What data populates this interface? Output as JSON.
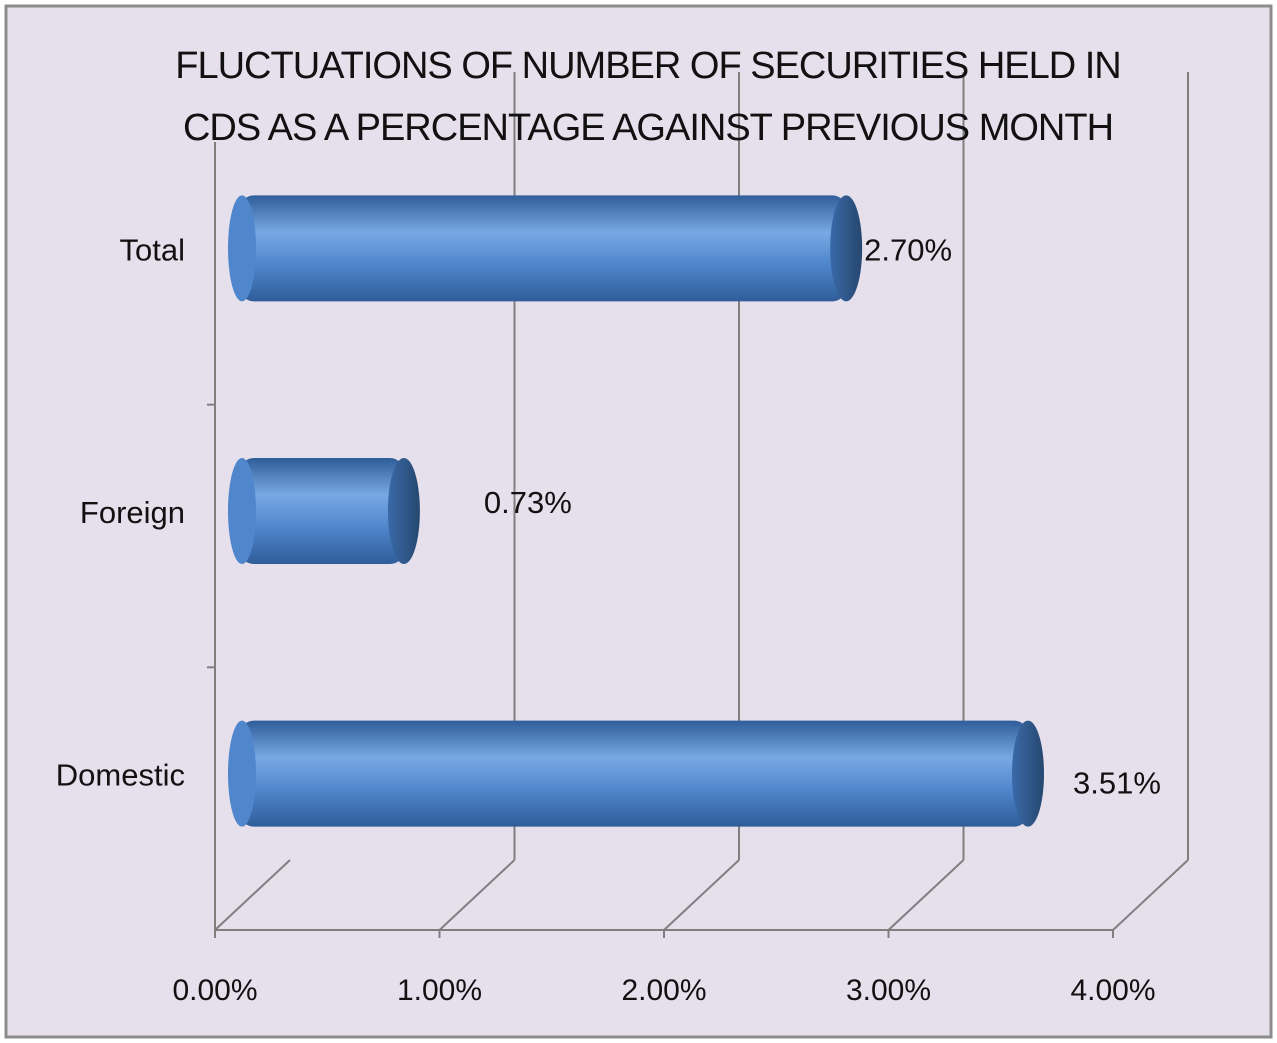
{
  "chart_data": {
    "type": "bar",
    "orientation": "horizontal",
    "style": "3d-cylinder",
    "title": "FLUCTUATIONS OF  NUMBER  OF SECURITIES HELD IN CDS  AS A PERCENTAGE AGAINST PREVIOUS MONTH",
    "title_lines": [
      "FLUCTUATIONS OF  NUMBER  OF SECURITIES HELD IN",
      "CDS  AS A PERCENTAGE AGAINST PREVIOUS MONTH"
    ],
    "categories": [
      "Total",
      "Foreign",
      "Domestic"
    ],
    "values": [
      2.7,
      0.73,
      3.51
    ],
    "data_labels": [
      "2.70%",
      "0.73%",
      "3.51%"
    ],
    "unit": "%",
    "xlim": [
      0,
      4
    ],
    "x_ticks": [
      0,
      1,
      2,
      3,
      4
    ],
    "x_tick_labels": [
      "0.00%",
      "1.00%",
      "2.00%",
      "3.00%",
      "4.00%"
    ],
    "xlabel": "",
    "ylabel": "",
    "grid": true,
    "legend": "none",
    "colors": {
      "background": "#e6dfec",
      "bar_face": "#4f86cc",
      "bar_highlight": "#79a9e4",
      "bar_shadow": "#2f5d99",
      "bar_cap": "#2d5482",
      "gridline": "#7f7f7f",
      "border": "#8c8c8c"
    }
  }
}
